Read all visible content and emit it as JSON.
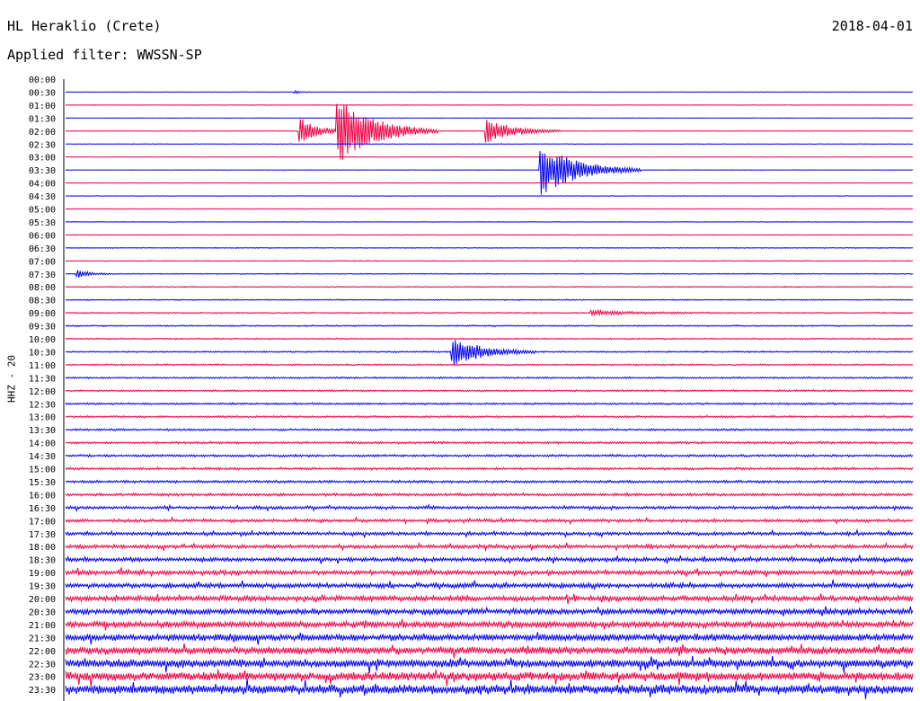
{
  "header": {
    "station": "HL Heraklio (Crete)",
    "date": "2018-04-01",
    "filter_label": "Applied filter: WWSSN-SP"
  },
  "chart_data": {
    "type": "line",
    "title": "HL Heraklio (Crete)",
    "ylabel": "HHZ - 20",
    "row_colors": [
      "#0000ee",
      "#ee0044"
    ],
    "time_labels": [
      "00:00",
      "00:30",
      "01:00",
      "01:30",
      "02:00",
      "02:30",
      "03:00",
      "03:30",
      "04:00",
      "04:30",
      "05:00",
      "05:30",
      "06:00",
      "06:30",
      "07:00",
      "07:30",
      "08:00",
      "08:30",
      "09:00",
      "09:30",
      "10:00",
      "10:30",
      "11:00",
      "11:30",
      "12:00",
      "12:30",
      "13:00",
      "13:30",
      "14:00",
      "14:30",
      "15:00",
      "15:30",
      "16:00",
      "16:30",
      "17:00",
      "17:30",
      "18:00",
      "18:30",
      "19:00",
      "19:30",
      "20:00",
      "20:30",
      "21:00",
      "21:30",
      "22:00",
      "22:30",
      "23:00",
      "23:30"
    ],
    "noise_level": [
      0.05,
      0.05,
      0.06,
      0.06,
      0.06,
      0.06,
      0.06,
      0.06,
      0.06,
      0.06,
      0.07,
      0.07,
      0.08,
      0.09,
      0.1,
      0.11,
      0.12,
      0.12,
      0.14,
      0.15,
      0.16,
      0.16,
      0.17,
      0.18,
      0.18,
      0.2,
      0.22,
      0.22,
      0.24,
      0.25,
      0.26,
      0.28,
      0.3,
      0.32,
      0.34,
      0.36,
      0.4,
      0.44,
      0.48,
      0.52,
      0.56,
      0.6,
      0.66,
      0.72,
      0.8,
      0.86,
      0.92,
      0.98
    ],
    "events": [
      {
        "row": 1,
        "x": 0.27,
        "amp": 0.5,
        "dur": 0.02
      },
      {
        "row": 4,
        "x": 0.275,
        "amp": 4.0,
        "dur": 0.06
      },
      {
        "row": 4,
        "x": 0.32,
        "amp": 9.0,
        "dur": 0.12
      },
      {
        "row": 4,
        "x": 0.495,
        "amp": 3.5,
        "dur": 0.09
      },
      {
        "row": 7,
        "x": 0.56,
        "amp": 7.0,
        "dur": 0.12
      },
      {
        "row": 15,
        "x": 0.012,
        "amp": 1.2,
        "dur": 0.04
      },
      {
        "row": 18,
        "x": 0.62,
        "amp": 0.6,
        "dur": 0.15
      },
      {
        "row": 21,
        "x": 0.455,
        "amp": 4.0,
        "dur": 0.1
      }
    ]
  }
}
